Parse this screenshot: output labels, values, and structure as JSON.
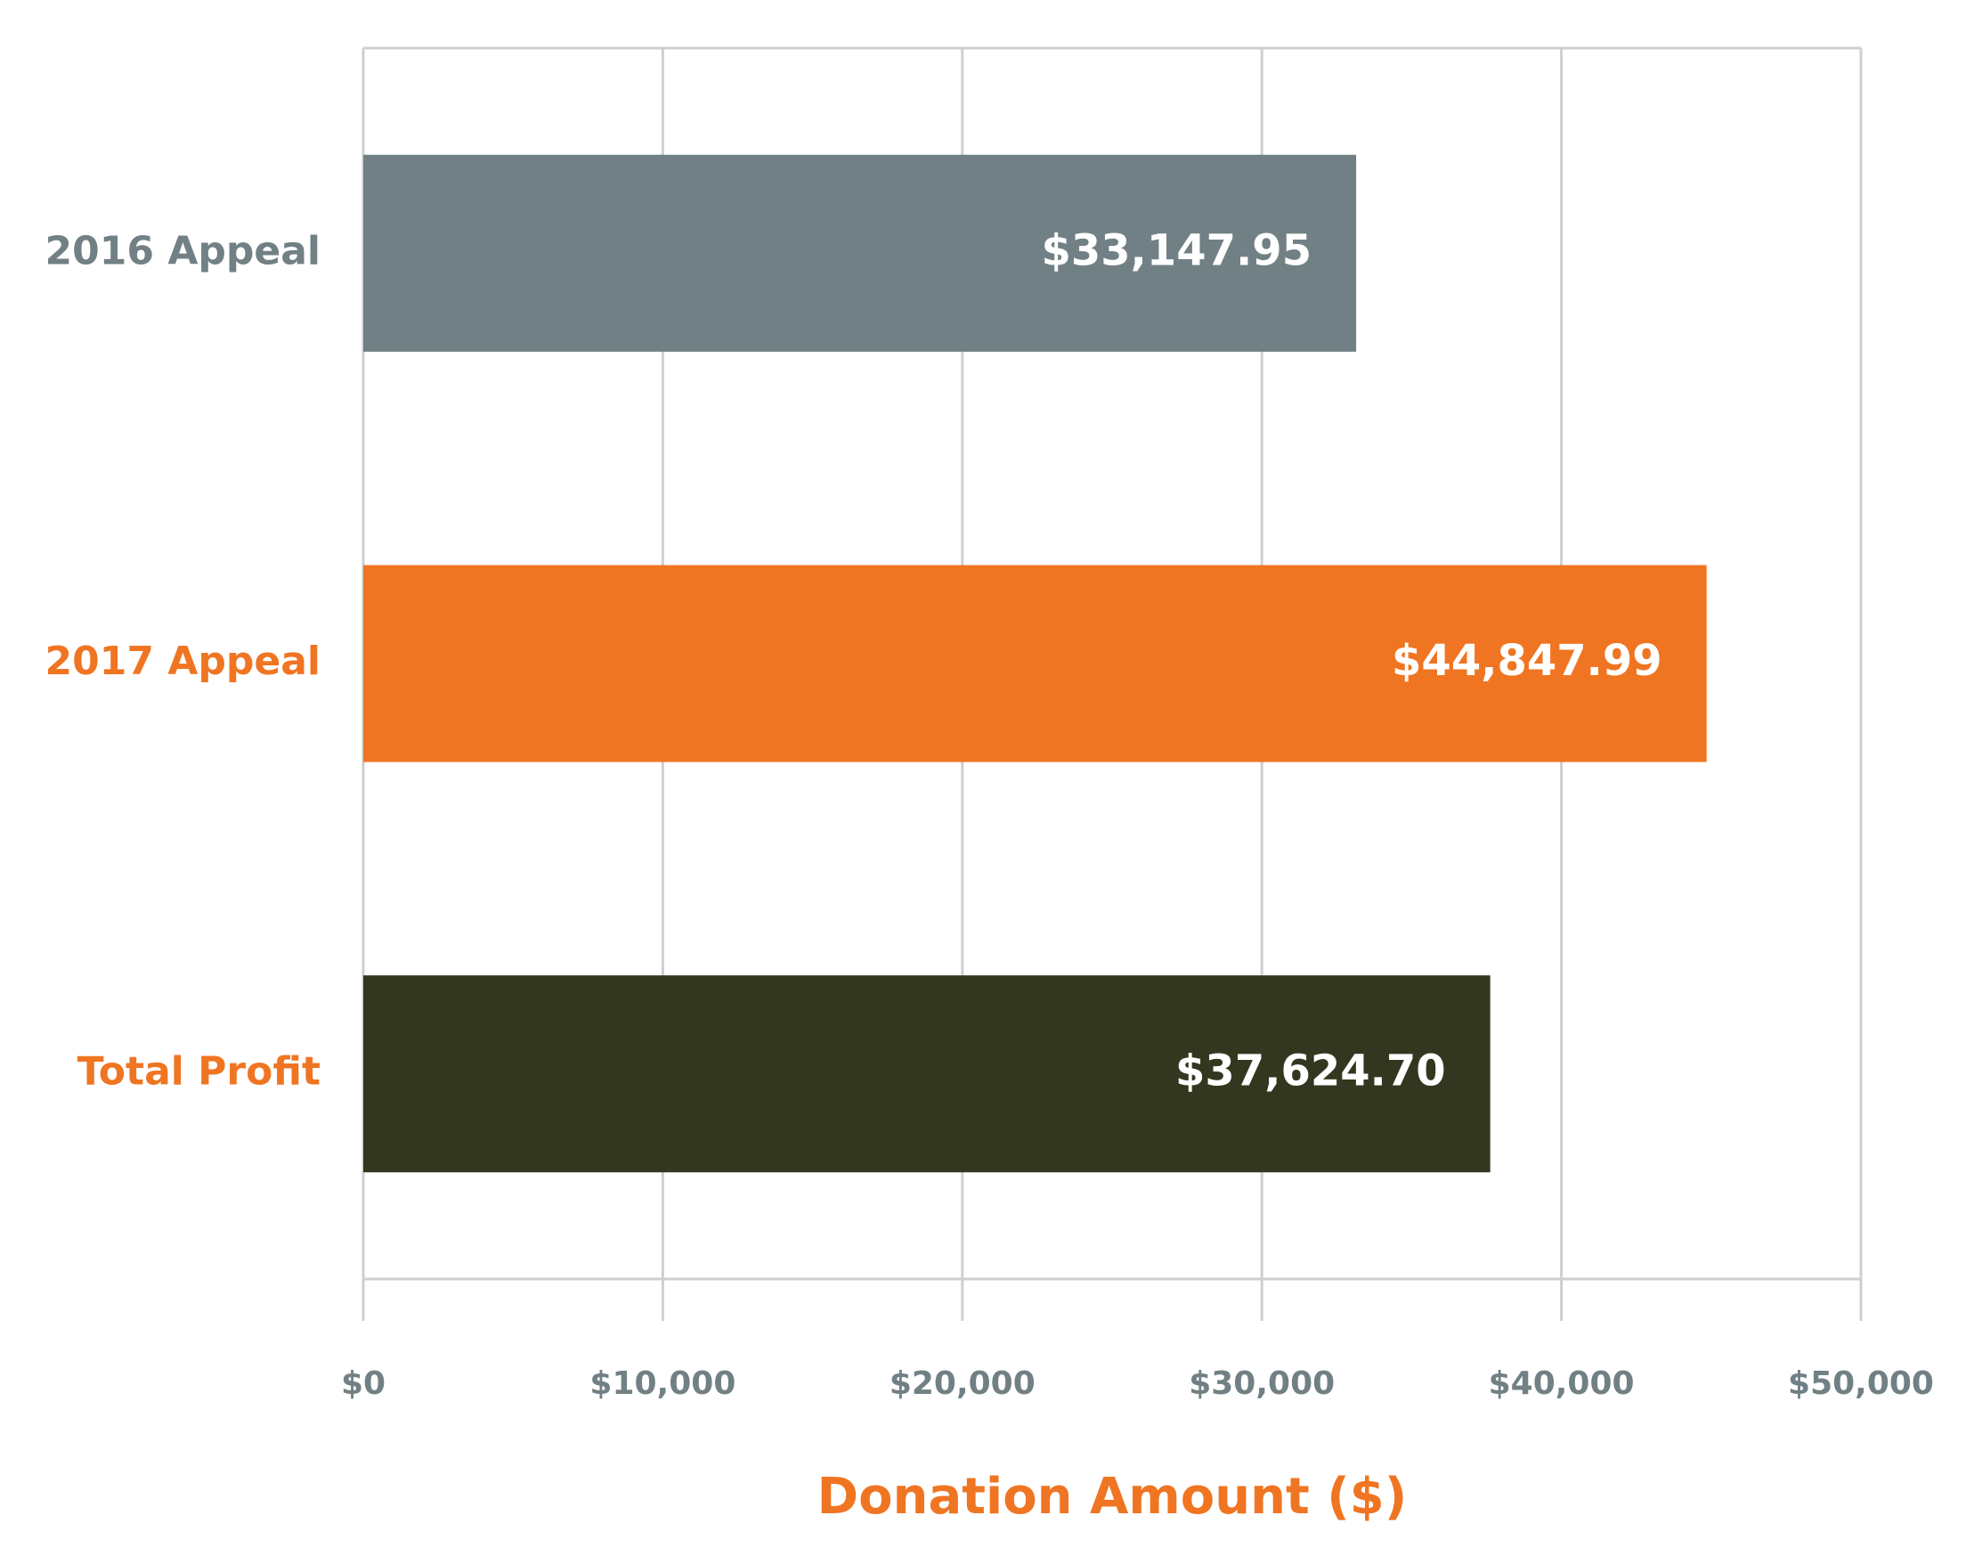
{
  "chart_data": {
    "type": "bar",
    "orientation": "horizontal",
    "x_label": "Donation Amount ($)",
    "categories": [
      "2016 Appeal",
      "2017 Appeal",
      "Total Profit"
    ],
    "values": [
      33147.95,
      44847.99,
      37624.7
    ],
    "value_labels": [
      "$33,147.95",
      "$44,847.99",
      "$37,624.70"
    ],
    "colors": [
      "#718084",
      "#f07522",
      "#343720"
    ],
    "label_colors": [
      "#718084",
      "#f07522",
      "#f07522"
    ],
    "xlim": [
      0,
      50000
    ],
    "xticks": [
      {
        "value": 0,
        "label": "$0"
      },
      {
        "value": 10000,
        "label": "$10,000"
      },
      {
        "value": 20000,
        "label": "$20,000"
      },
      {
        "value": 30000,
        "label": "$30,000"
      },
      {
        "value": 40000,
        "label": "$40,000"
      },
      {
        "value": 50000,
        "label": "$50,000"
      }
    ],
    "grid": true
  }
}
